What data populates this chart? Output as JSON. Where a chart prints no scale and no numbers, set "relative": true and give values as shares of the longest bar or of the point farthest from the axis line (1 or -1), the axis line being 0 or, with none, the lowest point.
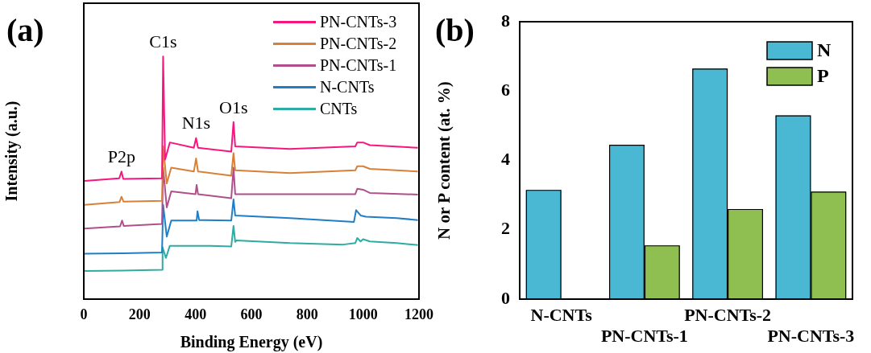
{
  "chart_data": [
    {
      "type": "line",
      "title": "(a)",
      "xlabel": "Binding Energy (eV)",
      "ylabel": "Intensity (a.u.)",
      "relative": true,
      "xlim": [
        0,
        1200
      ],
      "xticks": [
        0,
        200,
        400,
        600,
        800,
        1000,
        1200
      ],
      "tick_labels": "x",
      "legend": "top right",
      "annotations": [
        {
          "text": "C1s",
          "x": 284,
          "y": 1
        },
        {
          "text": "N1s",
          "x": 402,
          "y": 0.664
        },
        {
          "text": "O1s",
          "x": 536,
          "y": 0.73
        },
        {
          "text": "P2p",
          "x": 135,
          "y": 0.526
        }
      ],
      "series": [
        {
          "name": "PN-CNTs-3",
          "color": "#f7167f",
          "x": [
            3,
            127,
            135,
            141,
            280,
            284,
            291,
            308,
            394,
            402,
            409,
            528,
            536,
            542,
            738,
            972,
            979,
            1000,
            1024,
            1196
          ],
          "values": [
            0.487,
            0.498,
            0.526,
            0.496,
            0.498,
            1,
            0.575,
            0.646,
            0.624,
            0.664,
            0.624,
            0.608,
            0.73,
            0.63,
            0.619,
            0.63,
            0.646,
            0.646,
            0.635,
            0.624
          ]
        },
        {
          "name": "PN-CNTs-2",
          "color": "#d98038",
          "x": [
            3,
            128,
            135,
            142,
            280,
            284,
            297,
            313,
            394,
            402,
            409,
            528,
            536,
            542,
            738,
            972,
            979,
            1000,
            1024,
            1196
          ],
          "values": [
            0.389,
            0.4,
            0.422,
            0.402,
            0.405,
            0.63,
            0.477,
            0.542,
            0.526,
            0.58,
            0.526,
            0.509,
            0.602,
            0.531,
            0.52,
            0.531,
            0.548,
            0.548,
            0.537,
            0.526
          ]
        },
        {
          "name": "PN-CNTs-1",
          "color": "#b04f8c",
          "x": [
            3,
            130,
            137,
            143,
            280,
            284,
            297,
            313,
            400,
            404,
            409,
            528,
            536,
            542,
            738,
            972,
            979,
            1000,
            1024,
            1196
          ],
          "values": [
            0.291,
            0.3,
            0.324,
            0.302,
            0.31,
            0.542,
            0.378,
            0.444,
            0.433,
            0.471,
            0.433,
            0.416,
            0.542,
            0.433,
            0.433,
            0.433,
            0.455,
            0.451,
            0.438,
            0.431
          ]
        },
        {
          "name": "N-CNTs",
          "color": "#1f7ec6",
          "x": [
            3,
            140,
            280,
            284,
            297,
            313,
            404,
            407,
            413,
            528,
            536,
            542,
            738,
            967,
            975,
            991,
            1010,
            1120,
            1196
          ],
          "values": [
            0.187,
            0.189,
            0.192,
            0.389,
            0.258,
            0.324,
            0.324,
            0.362,
            0.326,
            0.324,
            0.411,
            0.345,
            0.334,
            0.318,
            0.367,
            0.345,
            0.34,
            0.334,
            0.326
          ]
        },
        {
          "name": "CNTs",
          "color": "#2eaba2",
          "x": [
            3,
            140,
            280,
            282,
            294,
            308,
            452,
            528,
            536,
            542,
            547,
            738,
            929,
            972,
            979,
            991,
            1000,
            1024,
            1120,
            1196
          ],
          "values": [
            0.116,
            0.118,
            0.121,
            0.214,
            0.17,
            0.22,
            0.22,
            0.217,
            0.302,
            0.236,
            0.242,
            0.231,
            0.225,
            0.231,
            0.252,
            0.238,
            0.247,
            0.238,
            0.231,
            0.223
          ]
        }
      ]
    },
    {
      "type": "bar",
      "title": "(b)",
      "ylabel": "N or P content (at. %)",
      "categories": [
        "N-CNTs",
        "PN-CNTs-1",
        "PN-CNTs-2",
        "PN-CNTs-3"
      ],
      "ylim": [
        0,
        8
      ],
      "yticks": [
        0,
        2,
        4,
        6,
        8
      ],
      "legend": "top right",
      "series": [
        {
          "name": "N",
          "color": "#4ab8d3",
          "values": [
            3.15,
            4.45,
            6.65,
            5.3
          ]
        },
        {
          "name": "P",
          "color": "#8fbf50",
          "values": [
            null,
            1.55,
            2.6,
            3.1
          ]
        }
      ]
    }
  ]
}
